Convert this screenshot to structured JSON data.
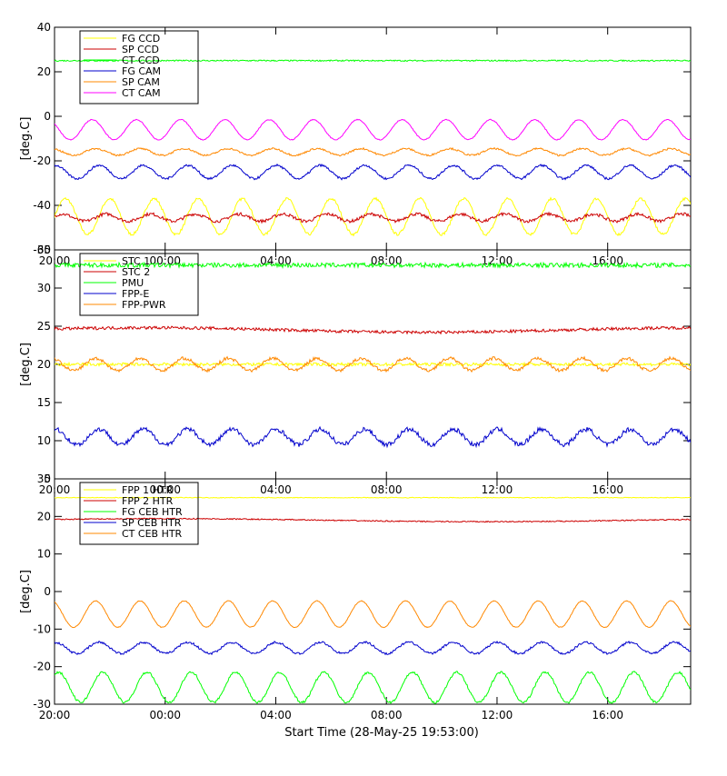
{
  "figure": {
    "x_ticks": [
      "20:00",
      "00:00",
      "04:00",
      "08:00",
      "12:00",
      "16:00"
    ],
    "xlabel": "Start Time (28-May-25 19:53:00)"
  },
  "colors": {
    "yellow": "#ffff00",
    "red": "#cc0000",
    "green": "#00ff00",
    "blue": "#0000cc",
    "orange": "#ff8800",
    "magenta": "#ff00ff"
  },
  "chart_data": [
    {
      "type": "line",
      "ylabel": "[deg.C]",
      "xlim_hours": [
        0,
        23
      ],
      "ylim": [
        -60,
        40
      ],
      "y_ticks": [
        -60,
        -40,
        -20,
        0,
        20,
        40
      ],
      "legend_position": "top-left",
      "series": [
        {
          "name": "FG CCD",
          "color": "yellow",
          "mean": -45,
          "amplitude": 8,
          "period_hours": 1.6,
          "noise": 0.6
        },
        {
          "name": "SP CCD",
          "color": "red",
          "mean": -45.5,
          "amplitude": 1.6,
          "period_hours": 1.6,
          "noise": 0.7
        },
        {
          "name": "CT CCD",
          "color": "green",
          "mean": 25,
          "amplitude": 0,
          "period_hours": 0,
          "noise": 0.3
        },
        {
          "name": "FG CAM",
          "color": "blue",
          "mean": -25,
          "amplitude": 3,
          "period_hours": 1.6,
          "noise": 0.5
        },
        {
          "name": "SP CAM",
          "color": "orange",
          "mean": -16,
          "amplitude": 1.5,
          "period_hours": 1.6,
          "noise": 0.4
        },
        {
          "name": "CT CAM",
          "color": "magenta",
          "mean": -6,
          "amplitude": 4.5,
          "period_hours": 1.6,
          "noise": 0.2
        }
      ]
    },
    {
      "type": "line",
      "ylabel": "[deg.C]",
      "xlim_hours": [
        0,
        23
      ],
      "ylim": [
        5,
        35
      ],
      "y_ticks": [
        5,
        10,
        15,
        20,
        25,
        30,
        35
      ],
      "legend_position": "top-left",
      "series": [
        {
          "name": "STC 1",
          "color": "yellow",
          "mean": 20,
          "amplitude": 0,
          "period_hours": 0,
          "noise": 0.2
        },
        {
          "name": "STC 2",
          "color": "red",
          "mean": 24.5,
          "amplitude": 0.3,
          "period_hours": 20,
          "noise": 0.2
        },
        {
          "name": "PMU",
          "color": "green",
          "mean": 33,
          "amplitude": 0,
          "period_hours": 0,
          "noise": 0.3
        },
        {
          "name": "FPP-E",
          "color": "blue",
          "mean": 10.5,
          "amplitude": 1,
          "period_hours": 1.6,
          "noise": 0.3
        },
        {
          "name": "FPP-PWR",
          "color": "orange",
          "mean": 20,
          "amplitude": 0.8,
          "period_hours": 1.6,
          "noise": 0.2
        }
      ]
    },
    {
      "type": "line",
      "ylabel": "[deg.C]",
      "xlim_hours": [
        0,
        23
      ],
      "ylim": [
        -30,
        30
      ],
      "y_ticks": [
        -30,
        -20,
        -10,
        0,
        10,
        20,
        30
      ],
      "legend_position": "top-left",
      "series": [
        {
          "name": "FPP 1 HTR",
          "color": "yellow",
          "mean": 25,
          "amplitude": 0,
          "period_hours": 0,
          "noise": 0.1
        },
        {
          "name": "FPP 2 HTR",
          "color": "red",
          "mean": 19,
          "amplitude": 0.4,
          "period_hours": 23,
          "noise": 0.15
        },
        {
          "name": "FG CEB HTR",
          "color": "green",
          "mean": -25.5,
          "amplitude": 4,
          "period_hours": 1.6,
          "noise": 0.3
        },
        {
          "name": "SP CEB HTR",
          "color": "blue",
          "mean": -15,
          "amplitude": 1.5,
          "period_hours": 1.6,
          "noise": 0.3
        },
        {
          "name": "CT CEB HTR",
          "color": "orange",
          "mean": -6,
          "amplitude": 3.5,
          "period_hours": 1.6,
          "noise": 0.1
        }
      ]
    }
  ]
}
